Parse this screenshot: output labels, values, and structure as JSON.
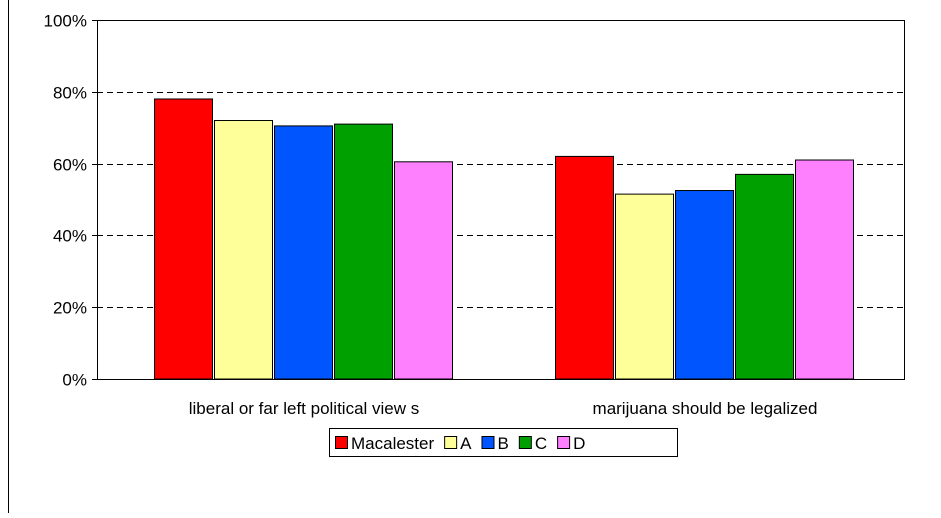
{
  "chart_data": {
    "type": "bar",
    "categories": [
      "liberal or far left political view s",
      "marijuana should be legalized"
    ],
    "series": [
      {
        "name": "Macalester",
        "color": "#FF0000",
        "values": [
          78,
          62
        ]
      },
      {
        "name": "A",
        "color": "#FFFF99",
        "values": [
          72,
          51.5
        ]
      },
      {
        "name": "B",
        "color": "#0055FF",
        "values": [
          70.5,
          52.5
        ]
      },
      {
        "name": "C",
        "color": "#00A000",
        "values": [
          71,
          57
        ]
      },
      {
        "name": "D",
        "color": "#FF80FF",
        "values": [
          60.5,
          61
        ]
      }
    ],
    "y_ticks": [
      "0%",
      "20%",
      "40%",
      "60%",
      "80%",
      "100%"
    ],
    "ylim": [
      0,
      100
    ],
    "grid": "horizontal dashed",
    "legend_position": "bottom"
  }
}
